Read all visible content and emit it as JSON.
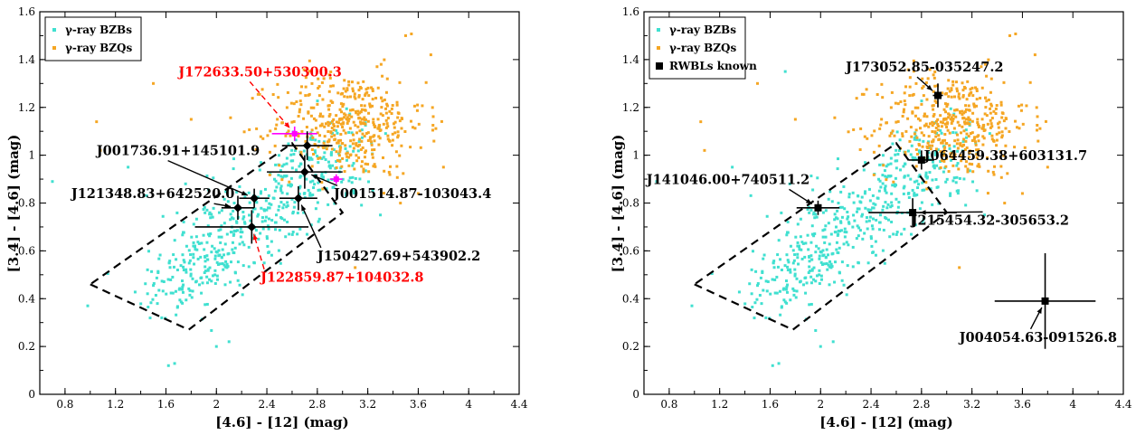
{
  "colors": {
    "bzb": "#40e0d0",
    "bzq": "#f5a623",
    "red": "#ff0000",
    "black": "#000000",
    "magenta": "#ff00ff"
  },
  "chart_data": [
    {
      "type": "scatter",
      "xlabel": "[4.6] - [12] (mag)",
      "ylabel": "[3.4] - [4.6] (mag)",
      "xlim": [
        0.6,
        4.4
      ],
      "ylim": [
        0,
        1.6
      ],
      "xticks": [
        "0.8",
        "1.2",
        "1.6",
        "2",
        "2.4",
        "2.8",
        "3.2",
        "3.6",
        "4",
        "4.4"
      ],
      "yticks": [
        "0",
        "0.2",
        "0.4",
        "0.6",
        "0.8",
        "1",
        "1.2",
        "1.4",
        "1.6"
      ],
      "legend_position": "top-left",
      "series": [
        {
          "name": "γ-ray BZBs",
          "color": "#40e0d0",
          "cluster": {
            "x_range": [
              1.4,
              3.1
            ],
            "y_range": [
              0.35,
              1.1
            ]
          }
        },
        {
          "name": "γ-ray BZQs",
          "color": "#f5a623",
          "cluster": {
            "x_range": [
              2.3,
              3.8
            ],
            "y_range": [
              0.9,
              1.5
            ]
          }
        }
      ],
      "wedge": [
        [
          1.0,
          0.46
        ],
        [
          1.78,
          0.27
        ],
        [
          3.0,
          0.76
        ],
        [
          2.6,
          1.05
        ]
      ],
      "sources": [
        {
          "label": "J172633.50+530300.3",
          "x": 2.62,
          "y": 1.09,
          "xerr": 0.18,
          "yerr": 0.03,
          "color": "red",
          "marker": "magenta",
          "label_x": 1.7,
          "label_y": 1.33
        },
        {
          "label": "J001736.91+145101.9",
          "x": 2.3,
          "y": 0.82,
          "xerr": 0.12,
          "yerr": 0.04,
          "color": "black",
          "marker": "diamond",
          "label_x": 1.05,
          "label_y": 1.0
        },
        {
          "label": "J121348.83+642520.0",
          "x": 2.17,
          "y": 0.78,
          "xerr": 0.13,
          "yerr": 0.05,
          "color": "black",
          "marker": "diamond",
          "label_x": 0.85,
          "label_y": 0.82
        },
        {
          "label": "J001514.87-103043.4",
          "x": 2.7,
          "y": 0.93,
          "xerr": 0.3,
          "yerr": 0.07,
          "color": "black",
          "marker": "diamond",
          "label_x": 2.93,
          "label_y": 0.82
        },
        {
          "label": "J150427.69+543902.2",
          "x": 2.65,
          "y": 0.82,
          "xerr": 0.15,
          "yerr": 0.05,
          "color": "black",
          "marker": "diamond",
          "label_x": 2.8,
          "label_y": 0.56
        },
        {
          "label": "J122859.87+104032.8",
          "x": 2.28,
          "y": 0.7,
          "xerr": 0.45,
          "yerr": 0.07,
          "color": "red",
          "marker": "diamond",
          "label_x": 2.35,
          "label_y": 0.47
        },
        {
          "label": "",
          "x": 2.72,
          "y": 1.04,
          "xerr": 0.2,
          "yerr": 0.06,
          "color": "black",
          "marker": "diamond"
        },
        {
          "label": "",
          "x": 2.95,
          "y": 0.9,
          "xerr": 0.05,
          "yerr": 0.02,
          "color": "black",
          "marker": "magenta"
        }
      ]
    },
    {
      "type": "scatter",
      "xlabel": "[4.6] - [12] (mag)",
      "ylabel": "[3.4] - [4.6] (mag)",
      "xlim": [
        0.6,
        4.4
      ],
      "ylim": [
        0,
        1.6
      ],
      "xticks": [
        "0.8",
        "1.2",
        "1.6",
        "2",
        "2.4",
        "2.8",
        "3.2",
        "3.6",
        "4",
        "4.4"
      ],
      "yticks": [
        "0",
        "0.2",
        "0.4",
        "0.6",
        "0.8",
        "1",
        "1.2",
        "1.4",
        "1.6"
      ],
      "legend_position": "top-left",
      "series": [
        {
          "name": "γ-ray BZBs",
          "color": "#40e0d0",
          "cluster": {
            "x_range": [
              1.4,
              3.1
            ],
            "y_range": [
              0.35,
              1.1
            ]
          }
        },
        {
          "name": "γ-ray BZQs",
          "color": "#f5a623",
          "cluster": {
            "x_range": [
              2.3,
              3.8
            ],
            "y_range": [
              0.9,
              1.5
            ]
          }
        },
        {
          "name": "RWBLs known",
          "color": "#000000"
        }
      ],
      "wedge": [
        [
          1.0,
          0.46
        ],
        [
          1.78,
          0.27
        ],
        [
          3.0,
          0.76
        ],
        [
          2.6,
          1.05
        ]
      ],
      "sources": [
        {
          "label": "J173052.85-035247.2",
          "x": 2.93,
          "y": 1.25,
          "xerr": 0.04,
          "yerr": 0.05,
          "color": "black",
          "marker": "square",
          "label_x": 2.2,
          "label_y": 1.35
        },
        {
          "label": "J064459.38+603131.7",
          "x": 2.8,
          "y": 0.98,
          "xerr": 0.1,
          "yerr": 0.04,
          "color": "black",
          "marker": "square",
          "label_x": 2.82,
          "label_y": 0.98
        },
        {
          "label": "J141046.00+740511.2",
          "x": 1.98,
          "y": 0.78,
          "xerr": 0.17,
          "yerr": 0.03,
          "color": "black",
          "marker": "square",
          "label_x": 0.62,
          "label_y": 0.88
        },
        {
          "label": "J215454.32-305653.2",
          "x": 2.73,
          "y": 0.76,
          "xerr": 0.35,
          "yerr": 0.06,
          "color": "black",
          "marker": "square",
          "label_x": 2.72,
          "label_y": 0.71
        },
        {
          "label": "J004054.63-091526.8",
          "x": 3.78,
          "y": 0.39,
          "xerr": 0.4,
          "yerr": 0.2,
          "color": "black",
          "marker": "square",
          "label_x": 3.1,
          "label_y": 0.22
        }
      ]
    }
  ]
}
